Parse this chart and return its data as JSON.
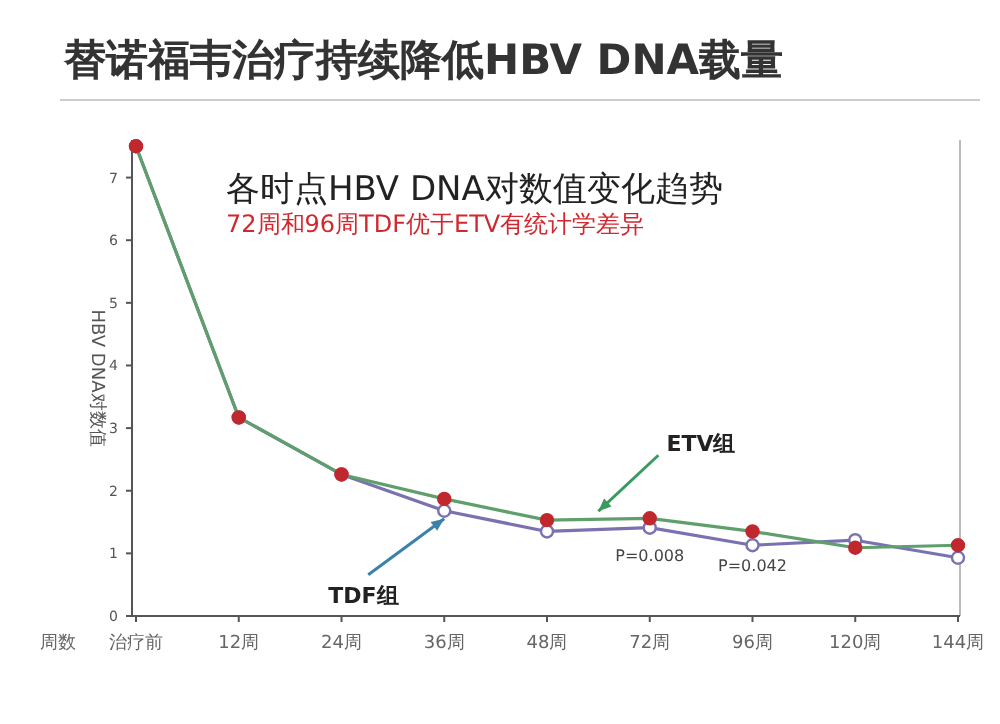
{
  "chart_data": {
    "type": "line",
    "title": "替诺福韦治疗持续降低HBV DNA载量",
    "subtitle": "各时点HBV DNA对数值变化趋势",
    "xlabel": "周数",
    "ylabel": "HBV DNA对数值",
    "categories": [
      "治疗前",
      "12周",
      "24周",
      "36周",
      "48周",
      "72周",
      "96周",
      "120周",
      "144周"
    ],
    "series": [
      {
        "name": "ETV组",
        "color": "#5f9f6c",
        "values": [
          7.5,
          3.17,
          2.26,
          1.87,
          1.53,
          1.56,
          1.35,
          1.09,
          1.13
        ]
      },
      {
        "name": "TDF组",
        "color": "#7a72b0",
        "values": [
          7.5,
          3.17,
          2.26,
          1.68,
          1.35,
          1.41,
          1.13,
          1.21,
          0.93
        ]
      }
    ],
    "annotations": [
      "72周和96周TDF优于ETV有统计学差异",
      "P=0.008",
      "P=0.042"
    ],
    "ylim": [
      0,
      7.6
    ],
    "yticks": [
      0,
      1,
      2,
      3,
      4,
      5,
      6,
      7
    ],
    "marker": "circle",
    "line_style": "solid"
  }
}
